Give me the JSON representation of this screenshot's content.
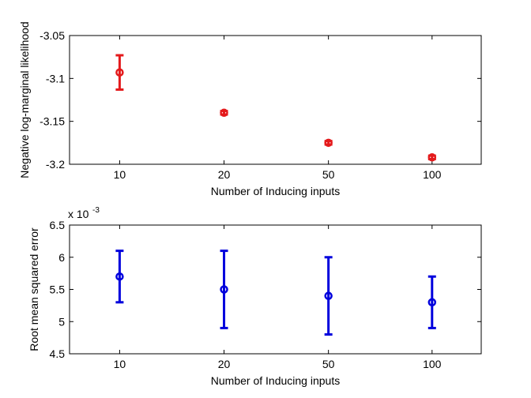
{
  "chart_data": [
    {
      "type": "scatter",
      "title": "",
      "xlabel": "Number of Inducing inputs",
      "ylabel": "Negative log-marginal likelihood",
      "categories": [
        "10",
        "20",
        "50",
        "100"
      ],
      "yticks": [
        "-3.05",
        "-3.1",
        "-3.15",
        "-3.2"
      ],
      "ylim": [
        -3.2,
        -3.05
      ],
      "grid": false,
      "color": "#e41a1c",
      "series": [
        {
          "values": [
            -3.093,
            -3.14,
            -3.175,
            -3.192
          ],
          "lower": [
            -3.113,
            -3.142,
            -3.177,
            -3.194
          ],
          "upper": [
            -3.073,
            -3.138,
            -3.173,
            -3.19
          ]
        }
      ]
    },
    {
      "type": "scatter",
      "title": "",
      "xlabel": "Number of Inducing inputs",
      "ylabel": "Root mean squared error",
      "scale_label": "x 10",
      "scale_exponent": "-3",
      "categories": [
        "10",
        "20",
        "50",
        "100"
      ],
      "yticks": [
        "6.5",
        "6",
        "5.5",
        "5",
        "4.5"
      ],
      "ylim": [
        4.5,
        6.5
      ],
      "grid": false,
      "color": "#0000dd",
      "series": [
        {
          "values": [
            5.7,
            5.5,
            5.4,
            5.3
          ],
          "lower": [
            5.3,
            4.9,
            4.8,
            4.9
          ],
          "upper": [
            6.1,
            6.1,
            6.0,
            5.7
          ]
        }
      ]
    }
  ]
}
